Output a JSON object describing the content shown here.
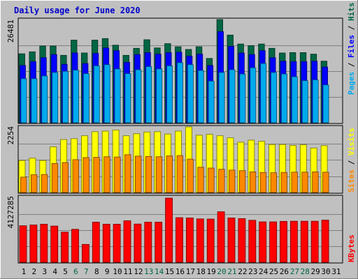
{
  "title": "Daily usage for June 2020",
  "colors": {
    "background": "#c0c0c0",
    "title": "#0000cc",
    "hits": "#006644",
    "files": "#0000ff",
    "pages": "#00aaee",
    "visits": "#ffff00",
    "sites": "#ff8800",
    "kbytes": "#ff0000",
    "weekend_label": "#006644",
    "weekday_label": "#000000"
  },
  "y_max_labels": {
    "top": "26481",
    "middle": "2254",
    "bottom": "4127285"
  },
  "right_legend": {
    "top": [
      {
        "text": "Pages",
        "color": "#00aaee"
      },
      {
        "text": " / ",
        "color": "#000000"
      },
      {
        "text": "Files",
        "color": "#0000ff"
      },
      {
        "text": " / ",
        "color": "#000000"
      },
      {
        "text": "Hits",
        "color": "#006644"
      }
    ],
    "middle": [
      {
        "text": "Sites",
        "color": "#ff8800"
      },
      {
        "text": " / ",
        "color": "#000000"
      },
      {
        "text": "Visits",
        "color": "#ffff00"
      }
    ],
    "bottom": [
      {
        "text": "KBytes",
        "color": "#ff0000"
      }
    ]
  },
  "chart_data": [
    {
      "type": "bar",
      "panel": "hits-files-pages",
      "categories": [
        "1",
        "2",
        "3",
        "4",
        "5",
        "6",
        "7",
        "8",
        "9",
        "10",
        "11",
        "12",
        "13",
        "14",
        "15",
        "16",
        "17",
        "18",
        "19",
        "20",
        "21",
        "22",
        "23",
        "24",
        "25",
        "26",
        "27",
        "28",
        "29",
        "30",
        "31"
      ],
      "weekend_days": [
        "6",
        "7",
        "13",
        "14",
        "20",
        "21",
        "27",
        "28"
      ],
      "ylim": [
        0,
        26481
      ],
      "series": [
        {
          "name": "Hits",
          "values": [
            17700,
            18200,
            19700,
            19700,
            17300,
            21200,
            17900,
            21200,
            21600,
            19900,
            17300,
            19100,
            21300,
            19200,
            20300,
            19500,
            18800,
            19500,
            16500,
            26481,
            22500,
            20200,
            19800,
            20200,
            19100,
            17900,
            18000,
            18000,
            17600,
            15800,
            0
          ]
        },
        {
          "name": "Files",
          "values": [
            14700,
            15700,
            16700,
            17500,
            15000,
            17900,
            15200,
            17800,
            19200,
            18500,
            15500,
            17500,
            18000,
            17600,
            18000,
            18100,
            17100,
            17600,
            14700,
            23400,
            19600,
            17900,
            17500,
            18500,
            16700,
            15800,
            15700,
            15700,
            15800,
            14300,
            0
          ]
        },
        {
          "name": "Pages",
          "values": [
            11300,
            11300,
            12000,
            12900,
            13200,
            13500,
            12600,
            14600,
            14900,
            13800,
            12600,
            13600,
            14400,
            13800,
            14600,
            15400,
            14900,
            13400,
            10700,
            12900,
            13600,
            12500,
            14100,
            15200,
            12900,
            12500,
            11800,
            10800,
            11000,
            9700,
            0
          ]
        }
      ]
    },
    {
      "type": "bar",
      "panel": "visits-sites",
      "categories": [
        "1",
        "2",
        "3",
        "4",
        "5",
        "6",
        "7",
        "8",
        "9",
        "10",
        "11",
        "12",
        "13",
        "14",
        "15",
        "16",
        "17",
        "18",
        "19",
        "20",
        "21",
        "22",
        "23",
        "24",
        "25",
        "26",
        "27",
        "28",
        "29",
        "30",
        "31"
      ],
      "ylim": [
        0,
        2254
      ],
      "series": [
        {
          "name": "Visits",
          "values": [
            1100,
            1180,
            1100,
            1570,
            1820,
            1850,
            1950,
            2090,
            2110,
            2150,
            1950,
            2020,
            2080,
            2090,
            2010,
            2110,
            2254,
            1970,
            2000,
            1950,
            1880,
            1730,
            1800,
            1760,
            1650,
            1650,
            1620,
            1640,
            1530,
            1610,
            0
          ]
        },
        {
          "name": "Sites",
          "values": [
            530,
            610,
            620,
            1000,
            1030,
            1130,
            1200,
            1210,
            1230,
            1220,
            1300,
            1250,
            1240,
            1230,
            1260,
            1270,
            1150,
            870,
            840,
            800,
            770,
            750,
            710,
            690,
            680,
            690,
            700,
            700,
            710,
            700,
            0
          ]
        }
      ]
    },
    {
      "type": "bar",
      "panel": "kbytes",
      "categories": [
        "1",
        "2",
        "3",
        "4",
        "5",
        "6",
        "7",
        "8",
        "9",
        "10",
        "11",
        "12",
        "13",
        "14",
        "15",
        "16",
        "17",
        "18",
        "19",
        "20",
        "21",
        "22",
        "23",
        "24",
        "25",
        "26",
        "27",
        "28",
        "29",
        "30",
        "31"
      ],
      "ylim": [
        0,
        4127285
      ],
      "series": [
        {
          "name": "KBytes",
          "values": [
            2350000,
            2400000,
            2450000,
            2330000,
            1940000,
            2120000,
            1150000,
            2580000,
            2450000,
            2450000,
            2670000,
            2460000,
            2580000,
            2580000,
            4127285,
            2870000,
            2850000,
            2790000,
            2780000,
            3250000,
            2850000,
            2810000,
            2700000,
            2600000,
            2600000,
            2630000,
            2640000,
            2640000,
            2640000,
            2710000,
            0
          ]
        }
      ]
    }
  ]
}
